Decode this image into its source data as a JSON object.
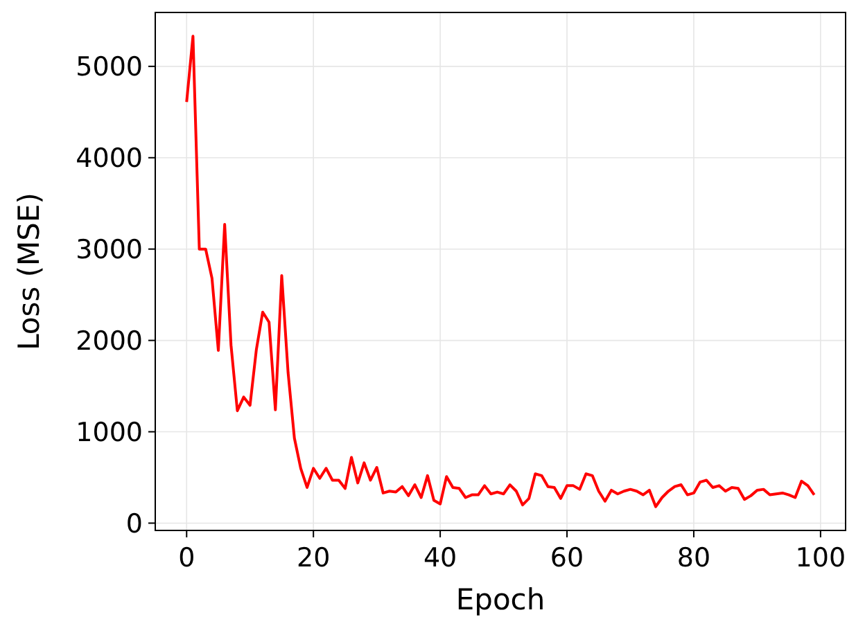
{
  "chart_data": {
    "type": "line",
    "xlabel": "Epoch",
    "ylabel": "Loss (MSE)",
    "x": [
      0,
      1,
      2,
      3,
      4,
      5,
      6,
      7,
      8,
      9,
      10,
      11,
      12,
      13,
      14,
      15,
      16,
      17,
      18,
      19,
      20,
      21,
      22,
      23,
      24,
      25,
      26,
      27,
      28,
      29,
      30,
      31,
      32,
      33,
      34,
      35,
      36,
      37,
      38,
      39,
      40,
      41,
      42,
      43,
      44,
      45,
      46,
      47,
      48,
      49,
      50,
      51,
      52,
      53,
      54,
      55,
      56,
      57,
      58,
      59,
      60,
      61,
      62,
      63,
      64,
      65,
      66,
      67,
      68,
      69,
      70,
      71,
      72,
      73,
      74,
      75,
      76,
      77,
      78,
      79,
      80,
      81,
      82,
      83,
      84,
      85,
      86,
      87,
      88,
      89,
      90,
      91,
      92,
      93,
      94,
      95,
      96,
      97,
      98,
      99
    ],
    "series": [
      {
        "color": "#ff0000",
        "values": [
          4610,
          5330,
          3000,
          3000,
          2680,
          1890,
          3270,
          1950,
          1230,
          1380,
          1290,
          1900,
          2310,
          2200,
          1240,
          2710,
          1650,
          930,
          600,
          390,
          600,
          490,
          600,
          470,
          470,
          380,
          720,
          440,
          660,
          470,
          610,
          330,
          350,
          340,
          400,
          300,
          420,
          280,
          520,
          250,
          210,
          510,
          390,
          380,
          280,
          310,
          310,
          410,
          320,
          340,
          320,
          420,
          350,
          200,
          270,
          540,
          520,
          400,
          390,
          270,
          410,
          410,
          370,
          540,
          520,
          350,
          240,
          360,
          320,
          350,
          370,
          350,
          310,
          360,
          180,
          280,
          350,
          400,
          420,
          310,
          330,
          450,
          470,
          390,
          410,
          350,
          390,
          380,
          260,
          300,
          360,
          370,
          310,
          320,
          330,
          310,
          280,
          460,
          410,
          310
        ]
      }
    ],
    "xlim": [
      -4.95,
      103.95
    ],
    "ylim": [
      -80,
      5590
    ],
    "xticks": [
      0,
      20,
      40,
      60,
      80,
      100
    ],
    "yticks": [
      0,
      1000,
      2000,
      3000,
      4000,
      5000
    ],
    "grid": true
  }
}
